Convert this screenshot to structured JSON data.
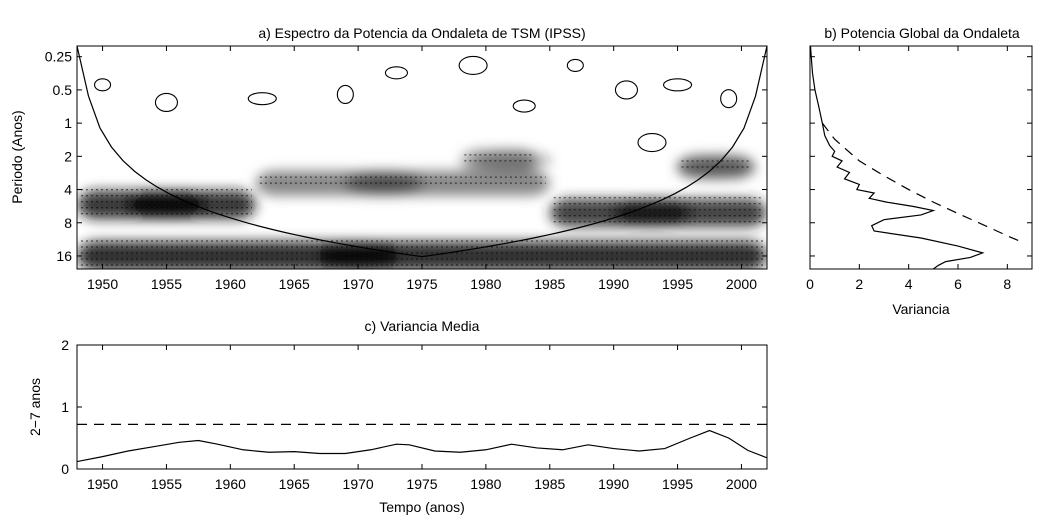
{
  "chart_data": [
    {
      "id": "a",
      "type": "heatmap",
      "title": "a) Espectro da Potencia da Ondaleta de TSM (IPSS)",
      "xlabel": "",
      "ylabel": "Periodo (Anos)",
      "xlim": [
        1948,
        2002
      ],
      "ylim": [
        0.2,
        21
      ],
      "y_scale": "log2",
      "y_reversed": true,
      "x_ticks": [
        1950,
        1955,
        1960,
        1965,
        1970,
        1975,
        1980,
        1985,
        1990,
        1995,
        2000
      ],
      "y_ticks": [
        0.25,
        0.5,
        1,
        2,
        4,
        8,
        16
      ],
      "y_tick_labels": [
        "0.25",
        "0.5",
        "1",
        "2",
        "4",
        "8",
        "16"
      ],
      "power_bands": [
        {
          "period": 16,
          "x_start": 1948,
          "x_end": 2002,
          "peak_year": 1970,
          "intensity": 0.95
        },
        {
          "period": 5.5,
          "x_start": 1948,
          "x_end": 1962,
          "peak_year": 1955,
          "intensity": 0.9
        },
        {
          "period": 6.5,
          "x_start": 1985,
          "x_end": 2002,
          "peak_year": 1993,
          "intensity": 0.85
        },
        {
          "period": 3.5,
          "x_start": 1962,
          "x_end": 1985,
          "peak_year": 1972,
          "intensity": 0.55
        },
        {
          "period": 2.5,
          "x_start": 1995,
          "x_end": 2001,
          "peak_year": 1998,
          "intensity": 0.5
        },
        {
          "period": 2.2,
          "x_start": 1978,
          "x_end": 1984,
          "peak_year": 1982,
          "intensity": 0.4
        }
      ],
      "cone_of_influence": true
    },
    {
      "id": "b",
      "type": "line",
      "title": "b) Potencia Global da Ondaleta",
      "xlabel": "Variancia",
      "ylabel": "",
      "xlim": [
        0,
        9
      ],
      "x_ticks": [
        0,
        2,
        4,
        6,
        8
      ],
      "series": [
        {
          "style": "solid",
          "points": [
            [
              0.02,
              0.2
            ],
            [
              0.05,
              0.25
            ],
            [
              0.1,
              0.35
            ],
            [
              0.2,
              0.5
            ],
            [
              0.35,
              0.7
            ],
            [
              0.5,
              1.0
            ],
            [
              0.6,
              1.3
            ],
            [
              0.8,
              1.6
            ],
            [
              1.0,
              1.8
            ],
            [
              0.9,
              2.0
            ],
            [
              1.3,
              2.2
            ],
            [
              1.1,
              2.5
            ],
            [
              1.6,
              2.8
            ],
            [
              1.4,
              3.2
            ],
            [
              2.0,
              3.6
            ],
            [
              1.9,
              4.0
            ],
            [
              2.6,
              4.3
            ],
            [
              2.4,
              4.8
            ],
            [
              3.1,
              5.2
            ],
            [
              4.2,
              5.7
            ],
            [
              5.0,
              6.2
            ],
            [
              4.5,
              6.8
            ],
            [
              3.0,
              7.5
            ],
            [
              2.5,
              8.5
            ],
            [
              2.6,
              9.5
            ],
            [
              4.5,
              11.0
            ],
            [
              6.0,
              13.0
            ],
            [
              7.0,
              15.0
            ],
            [
              6.5,
              16.5
            ],
            [
              5.5,
              18.0
            ],
            [
              5.2,
              19.5
            ],
            [
              5.0,
              21.0
            ]
          ]
        },
        {
          "style": "dashed",
          "points": [
            [
              0.5,
              1.0
            ],
            [
              1.0,
              1.4
            ],
            [
              2.0,
              2.2
            ],
            [
              3.0,
              3.0
            ],
            [
              4.0,
              4.0
            ],
            [
              5.0,
              5.2
            ],
            [
              6.0,
              6.6
            ],
            [
              7.0,
              8.3
            ],
            [
              8.0,
              10.5
            ],
            [
              8.6,
              12.0
            ]
          ]
        }
      ]
    },
    {
      "id": "c",
      "type": "line",
      "title": "c) Variancia Media",
      "xlabel": "Tempo (anos)",
      "ylabel": "2−7 anos",
      "xlim": [
        1948,
        2002
      ],
      "ylim": [
        0,
        2
      ],
      "x_ticks": [
        1950,
        1955,
        1960,
        1965,
        1970,
        1975,
        1980,
        1985,
        1990,
        1995,
        2000
      ],
      "y_ticks": [
        0,
        1,
        2
      ],
      "series": [
        {
          "style": "solid",
          "x": [
            1948,
            1950,
            1952,
            1954,
            1956,
            1957.5,
            1959,
            1961,
            1963,
            1965,
            1967,
            1969,
            1971,
            1973,
            1974,
            1976,
            1978,
            1980,
            1982,
            1984,
            1986,
            1988,
            1990,
            1992,
            1994,
            1996,
            1997.5,
            1999,
            2000.5,
            2002
          ],
          "y": [
            0.12,
            0.2,
            0.29,
            0.36,
            0.43,
            0.46,
            0.4,
            0.31,
            0.27,
            0.28,
            0.25,
            0.25,
            0.31,
            0.4,
            0.39,
            0.29,
            0.27,
            0.31,
            0.4,
            0.34,
            0.31,
            0.39,
            0.33,
            0.29,
            0.33,
            0.5,
            0.62,
            0.5,
            0.3,
            0.18
          ]
        },
        {
          "style": "dashed",
          "x": [
            1948,
            2002
          ],
          "y": [
            0.72,
            0.72
          ]
        }
      ]
    }
  ]
}
